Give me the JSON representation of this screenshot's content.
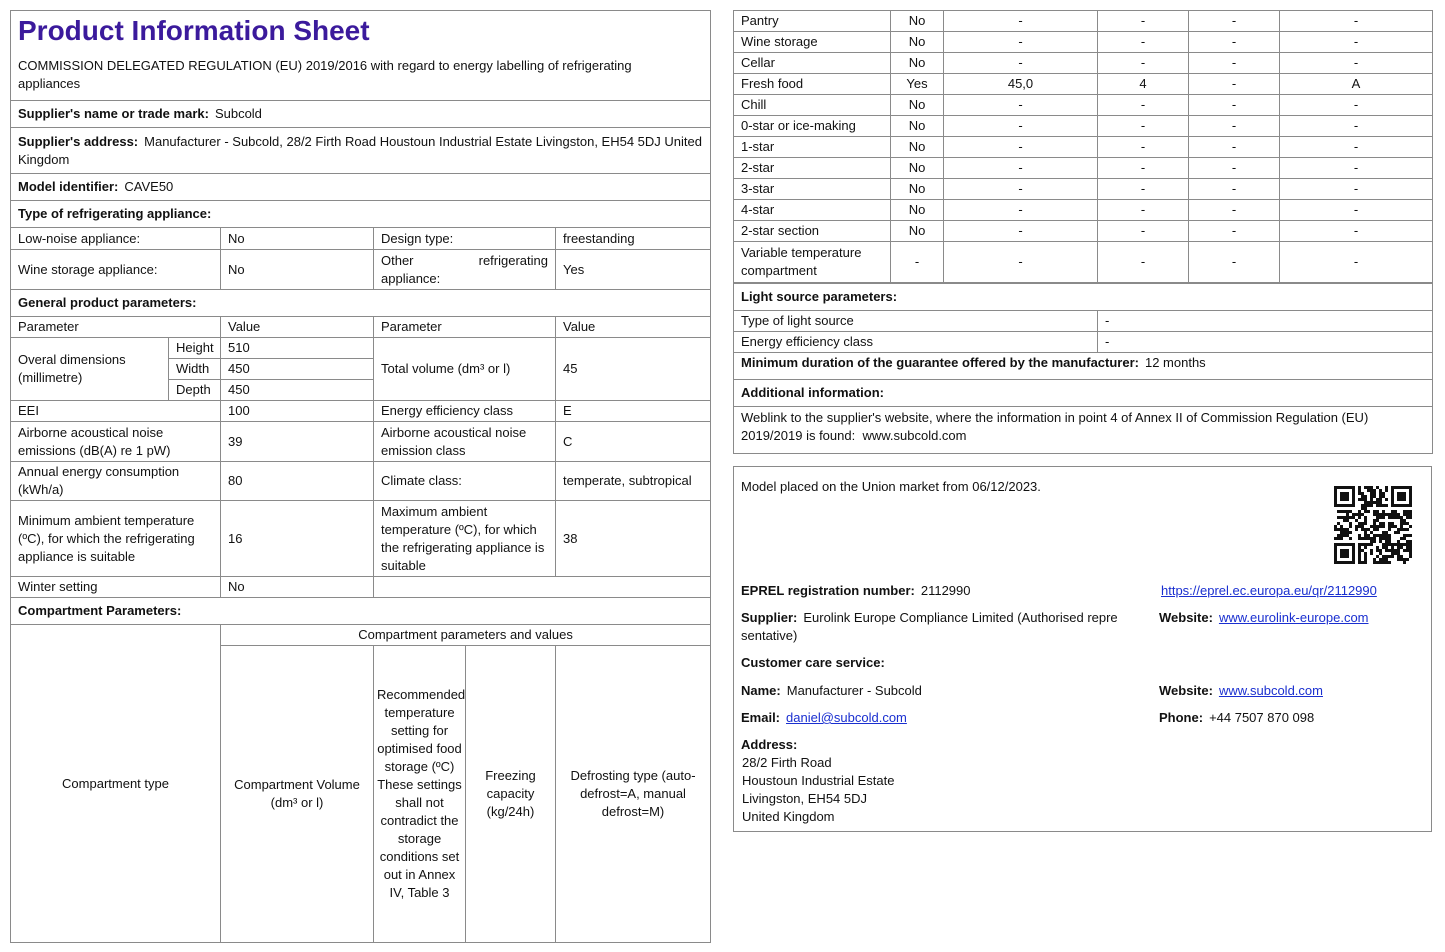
{
  "title": "Product Information Sheet",
  "regulation": "COMMISSION DELEGATED REGULATION (EU) 2019/2016 with regard to energy labelling of refrigerating appliances",
  "supplier_name": {
    "label": "Supplier's name or trade mark:",
    "value": "Subcold"
  },
  "supplier_address": {
    "label": "Supplier's address:",
    "value": "Manufacturer - Subcold, 28/2 Firth Road Houstoun Industrial Estate Livingston, EH54 5DJ United Kingdom"
  },
  "model": {
    "label": "Model identifier:",
    "value": "CAVE50"
  },
  "type_heading": "Type of refrigerating appliance:",
  "type": {
    "low_noise_label": "Low-noise appliance:",
    "low_noise": "No",
    "design_label": "Design type:",
    "design": "freestanding",
    "wine_label": "Wine storage appliance:",
    "wine": "No",
    "other_label": "Other refrigerating appliance:",
    "other": "Yes"
  },
  "general_heading": "General product parameters:",
  "general": {
    "h_param": "Parameter",
    "h_value": "Value",
    "dims_label": "Overal dimensions (millimetre)",
    "height_label": "Height",
    "height": "510",
    "width_label": "Width",
    "width": "450",
    "depth_label": "Depth",
    "depth": "450",
    "volume_label": "Total volume (dm³ or l)",
    "volume": "45",
    "eei_label": "EEI",
    "eei": "100",
    "eec_label": "Energy efficiency class",
    "eec": "E",
    "noise_label": "Airborne acoustical noise emissions (dB(A) re 1 pW)",
    "noise": "39",
    "noise_class_label": "Airborne acoustical noise emission class",
    "noise_class": "C",
    "aec_label": "Annual energy consumption (kWh/a)",
    "aec": "80",
    "climate_label": "Climate class:",
    "climate": "temperate, subtropical",
    "min_amb_label": "Minimum ambient temperature (ºC), for which the refrigerating appliance is suitable",
    "min_amb": "16",
    "max_amb_label": "Maximum ambient temperature (ºC), for which the refrigerating appliance is suitable",
    "max_amb": "38",
    "winter_label": "Winter setting",
    "winter": "No"
  },
  "compartment_heading": "Compartment Parameters:",
  "compartment_header": {
    "type": "Compartment type",
    "group": "Compartment parameters and values",
    "volume": "Compartment Volume (dm³ or l)",
    "temp": "Recommended temperature setting for optimised food storage (ºC) These settings shall not contradict the storage conditions set out in Annex IV, Table 3",
    "freezing": "Freezing capacity (kg/24h)",
    "defrost": "Defrosting type (auto-defrost=A, manual defrost=M)"
  },
  "compartments": [
    [
      "Pantry",
      "No",
      "-",
      "-",
      "-",
      "-"
    ],
    [
      "Wine storage",
      "No",
      "-",
      "-",
      "-",
      "-"
    ],
    [
      "Cellar",
      "No",
      "-",
      "-",
      "-",
      "-"
    ],
    [
      "Fresh food",
      "Yes",
      "45,0",
      "4",
      "-",
      "A"
    ],
    [
      "Chill",
      "No",
      "-",
      "-",
      "-",
      "-"
    ],
    [
      "0-star or ice-making",
      "No",
      "-",
      "-",
      "-",
      "-"
    ],
    [
      "1-star",
      "No",
      "-",
      "-",
      "-",
      "-"
    ],
    [
      "2-star",
      "No",
      "-",
      "-",
      "-",
      "-"
    ],
    [
      "3-star",
      "No",
      "-",
      "-",
      "-",
      "-"
    ],
    [
      "4-star",
      "No",
      "-",
      "-",
      "-",
      "-"
    ],
    [
      "2-star section",
      "No",
      "-",
      "-",
      "-",
      "-"
    ],
    [
      "Variable temperature compartment",
      "-",
      "-",
      "-",
      "-",
      "-"
    ]
  ],
  "light": {
    "heading": "Light source parameters:",
    "type_label": "Type of light source",
    "type": "-",
    "class_label": "Energy efficiency class",
    "class": "-"
  },
  "guarantee": {
    "label": "Minimum duration of the guarantee offered by the manufacturer:",
    "value": "12 months"
  },
  "additional": {
    "heading": "Additional information:",
    "weblink": "Weblink to the supplier's website, where the information in point 4 of Annex II of Commission Regulation (EU) 2019/2019 is found:",
    "url": "www.subcold.com"
  },
  "eprel": {
    "placed": "Model placed on the Union market from 06/12/2023.",
    "reg_label": "EPREL registration number:",
    "reg": "2112990",
    "reg_url": "https://eprel.ec.europa.eu/qr/2112990",
    "supplier_label": "Supplier:",
    "supplier": "Eurolink Europe Compliance Limited (Authorised repre sentative)",
    "website_label": "Website:",
    "supplier_web": "www.eurolink-europe.com",
    "care_heading": "Customer care service:",
    "name_label": "Name:",
    "name": "Manufacturer - Subcold",
    "care_web": "www.subcold.com",
    "email_label": "Email:",
    "email": "daniel@subcold.com",
    "phone_label": "Phone:",
    "phone": "+44 7507 870 098",
    "address_label": "Address:",
    "address": [
      "28/2 Firth Road",
      "Houstoun Industrial Estate",
      "Livingston, EH54 5DJ",
      "United Kingdom"
    ]
  },
  "colors": {
    "title": "#3b1a9c",
    "link": "#1a2fd0",
    "border": "#8a8a8a"
  }
}
